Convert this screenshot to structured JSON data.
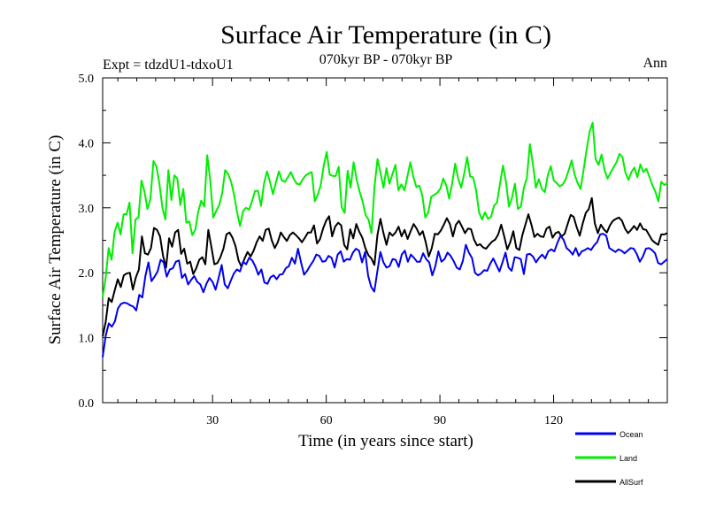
{
  "chart_data": {
    "type": "line",
    "title": "Surface Air Temperature (in C)",
    "subtitle": "070kyr BP - 070kyr BP",
    "experiment_label": "Expt = tdzdU1-tdxoU1",
    "season_label": "Ann",
    "xlabel": "Time (in years since start)",
    "ylabel": "Surface Air Temperature (in C)",
    "xlim": [
      1,
      150
    ],
    "ylim": [
      0,
      5
    ],
    "x_ticks": [
      30,
      60,
      90,
      120
    ],
    "y_ticks": [
      0,
      1,
      2,
      3,
      4,
      5
    ],
    "y_tick_labels": [
      "0.0",
      "1.0",
      "2.0",
      "3.0",
      "4.0",
      "5.0"
    ],
    "x_start": 1,
    "series": [
      {
        "name": "Ocean",
        "color": "#0000ee",
        "values": [
          0.7,
          1.03,
          1.22,
          1.17,
          1.25,
          1.45,
          1.52,
          1.54,
          1.53,
          1.5,
          1.48,
          1.42,
          1.66,
          1.62,
          1.95,
          2.16,
          1.87,
          1.94,
          2.02,
          2.2,
          2.16,
          1.94,
          2.05,
          2.07,
          2.17,
          2.19,
          1.92,
          1.98,
          1.82,
          1.89,
          1.95,
          1.86,
          1.82,
          1.7,
          1.83,
          1.92,
          1.86,
          1.74,
          1.92,
          2.12,
          1.82,
          1.76,
          1.88,
          1.99,
          2.05,
          2.02,
          2.17,
          2.13,
          2.23,
          2.19,
          2.1,
          1.97,
          2.05,
          1.85,
          1.83,
          1.93,
          1.96,
          1.9,
          1.97,
          1.98,
          2.07,
          2.1,
          2.23,
          2.14,
          2.37,
          2.16,
          1.97,
          2.03,
          2.11,
          2.18,
          2.28,
          2.26,
          2.17,
          2.18,
          2.26,
          2.23,
          2.08,
          2.28,
          2.33,
          2.17,
          2.21,
          2.2,
          2.31,
          2.37,
          2.34,
          2.16,
          2.32,
          1.95,
          1.78,
          1.71,
          2.02,
          2.32,
          2.16,
          2.08,
          2.1,
          2.21,
          2.2,
          2.09,
          2.28,
          2.34,
          2.17,
          2.28,
          2.23,
          2.17,
          2.17,
          2.3,
          2.21,
          2.16,
          1.96,
          2.1,
          2.33,
          2.17,
          2.21,
          2.31,
          2.26,
          2.18,
          2.08,
          2.05,
          2.18,
          2.43,
          2.31,
          2.23,
          2.0,
          1.96,
          1.99,
          2.04,
          2.03,
          2.14,
          2.22,
          2.12,
          2.02,
          2.16,
          2.31,
          2.08,
          2.03,
          2.24,
          2.23,
          2.21,
          1.98,
          2.28,
          2.29,
          2.25,
          2.16,
          2.23,
          2.28,
          2.22,
          2.33,
          2.36,
          2.33,
          2.46,
          2.57,
          2.51,
          2.38,
          2.34,
          2.28,
          2.38,
          2.26,
          2.33,
          2.35,
          2.38,
          2.35,
          2.42,
          2.47,
          2.59,
          2.6,
          2.57,
          2.38,
          2.35,
          2.32,
          2.36,
          2.34,
          2.3,
          2.34,
          2.38,
          2.37,
          2.29,
          2.17,
          2.25,
          2.37,
          2.38,
          2.35,
          2.3,
          2.15,
          2.13,
          2.17,
          2.21
        ],
        "line_width": 2
      },
      {
        "name": "Land",
        "color": "#00ee00",
        "values": [
          1.62,
          1.92,
          2.38,
          2.2,
          2.63,
          2.77,
          2.59,
          2.9,
          2.9,
          3.08,
          2.3,
          2.82,
          2.85,
          3.42,
          3.25,
          2.98,
          3.14,
          3.72,
          3.64,
          3.37,
          3.0,
          2.82,
          3.58,
          3.12,
          3.5,
          3.45,
          3.04,
          3.29,
          2.77,
          2.79,
          2.58,
          2.66,
          2.94,
          3.11,
          3.02,
          3.81,
          3.43,
          2.85,
          2.95,
          3.04,
          3.22,
          3.58,
          3.52,
          3.4,
          3.2,
          2.93,
          2.72,
          2.95,
          3.0,
          2.97,
          3.1,
          3.26,
          3.26,
          3.03,
          3.37,
          3.56,
          3.4,
          3.21,
          3.39,
          3.56,
          3.42,
          3.4,
          3.47,
          3.55,
          3.44,
          3.37,
          3.36,
          3.44,
          3.5,
          3.53,
          3.55,
          3.1,
          3.2,
          3.35,
          3.65,
          3.86,
          3.51,
          3.49,
          3.49,
          3.63,
          3.01,
          2.92,
          3.57,
          3.31,
          3.7,
          3.44,
          3.25,
          3.1,
          2.89,
          2.82,
          2.61,
          3.33,
          3.75,
          3.54,
          3.31,
          3.61,
          3.37,
          3.52,
          3.66,
          3.27,
          3.36,
          3.27,
          3.48,
          3.7,
          3.48,
          3.32,
          3.34,
          3.19,
          2.85,
          2.93,
          3.17,
          3.2,
          3.23,
          3.29,
          3.45,
          3.35,
          3.14,
          3.38,
          3.68,
          3.45,
          3.31,
          3.52,
          3.78,
          3.48,
          3.47,
          3.27,
          2.93,
          2.82,
          2.93,
          2.83,
          2.86,
          3.03,
          3.08,
          3.37,
          3.65,
          3.4,
          3.02,
          3.15,
          3.37,
          2.98,
          3.02,
          3.31,
          3.46,
          3.98,
          3.68,
          3.31,
          3.44,
          3.29,
          3.24,
          3.5,
          3.64,
          3.42,
          3.38,
          3.33,
          3.36,
          3.44,
          3.58,
          3.73,
          3.51,
          3.38,
          3.29,
          3.59,
          3.9,
          4.17,
          4.31,
          3.75,
          3.66,
          3.82,
          3.58,
          3.45,
          3.54,
          3.62,
          3.7,
          3.83,
          3.78,
          3.54,
          3.43,
          3.55,
          3.62,
          3.47,
          3.67,
          3.55,
          3.6,
          3.48,
          3.35,
          3.25,
          3.1,
          3.4,
          3.35,
          3.38
        ],
        "line_width": 2
      },
      {
        "name": "AllSurf",
        "color": "#000000",
        "values": [
          1.02,
          1.24,
          1.61,
          1.55,
          1.73,
          1.9,
          1.78,
          1.96,
          1.99,
          2.0,
          1.74,
          1.93,
          2.05,
          2.56,
          2.3,
          2.28,
          2.38,
          2.69,
          2.66,
          2.56,
          2.26,
          2.08,
          2.53,
          2.4,
          2.62,
          2.66,
          2.29,
          2.37,
          2.14,
          2.17,
          1.98,
          2.07,
          2.2,
          2.24,
          2.13,
          2.66,
          2.4,
          2.13,
          2.15,
          2.24,
          2.37,
          2.59,
          2.62,
          2.54,
          2.41,
          2.19,
          2.09,
          2.22,
          2.32,
          2.25,
          2.34,
          2.47,
          2.56,
          2.49,
          2.66,
          2.68,
          2.5,
          2.38,
          2.47,
          2.62,
          2.55,
          2.49,
          2.58,
          2.62,
          2.58,
          2.53,
          2.47,
          2.54,
          2.62,
          2.62,
          2.73,
          2.45,
          2.52,
          2.68,
          2.8,
          2.87,
          2.56,
          2.71,
          2.77,
          2.73,
          2.43,
          2.36,
          2.67,
          2.53,
          2.75,
          2.63,
          2.54,
          2.38,
          2.27,
          2.22,
          2.12,
          2.58,
          2.83,
          2.61,
          2.43,
          2.62,
          2.57,
          2.62,
          2.71,
          2.56,
          2.66,
          2.52,
          2.64,
          2.75,
          2.68,
          2.58,
          2.64,
          2.47,
          2.25,
          2.38,
          2.6,
          2.59,
          2.65,
          2.74,
          2.84,
          2.75,
          2.56,
          2.74,
          2.8,
          2.71,
          2.61,
          2.68,
          2.67,
          2.51,
          2.42,
          2.44,
          2.39,
          2.37,
          2.43,
          2.48,
          2.51,
          2.59,
          2.74,
          2.56,
          2.36,
          2.47,
          2.64,
          2.38,
          2.35,
          2.58,
          2.74,
          2.9,
          2.74,
          2.55,
          2.6,
          2.56,
          2.55,
          2.68,
          2.71,
          2.54,
          2.61,
          2.63,
          2.56,
          2.6,
          2.75,
          2.89,
          2.86,
          2.7,
          2.57,
          2.76,
          2.92,
          2.98,
          3.15,
          2.76,
          2.61,
          2.74,
          2.67,
          2.62,
          2.73,
          2.8,
          2.83,
          2.85,
          2.8,
          2.68,
          2.61,
          2.66,
          2.72,
          2.66,
          2.76,
          2.67,
          2.66,
          2.58,
          2.5,
          2.46,
          2.43,
          2.59,
          2.59,
          2.61
        ],
        "line_width": 2
      }
    ],
    "legend_position": "bottom-right",
    "grid": false
  }
}
